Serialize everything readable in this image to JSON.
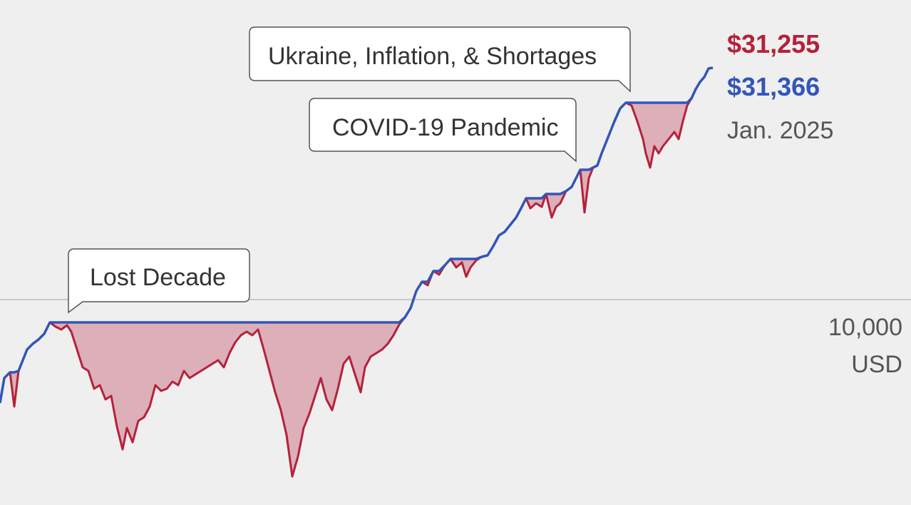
{
  "chart_data": {
    "type": "line",
    "title": "",
    "xlabel": "",
    "ylabel": "USD",
    "y_scale": "log",
    "grid": false,
    "reference_line": {
      "value": 10000,
      "label": "10,000",
      "unit": "USD"
    },
    "end_date": "Jan. 2025",
    "series": [
      {
        "color": "#b5213a",
        "end_value": 31255,
        "end_label": "$31,255"
      },
      {
        "color": "#3355b8",
        "end_value": 31366,
        "end_label": "$31,366"
      }
    ],
    "annotations": [
      {
        "text": "Lost Decade"
      },
      {
        "text": "COVID-19 Pandemic"
      },
      {
        "text": "Ukraine, Inflation, & Shortages"
      }
    ],
    "colors": {
      "drawdown_fill": "#d9a7b3",
      "peak_line": "#3355b8",
      "value_line": "#b5213a",
      "background": "#efefef"
    }
  }
}
